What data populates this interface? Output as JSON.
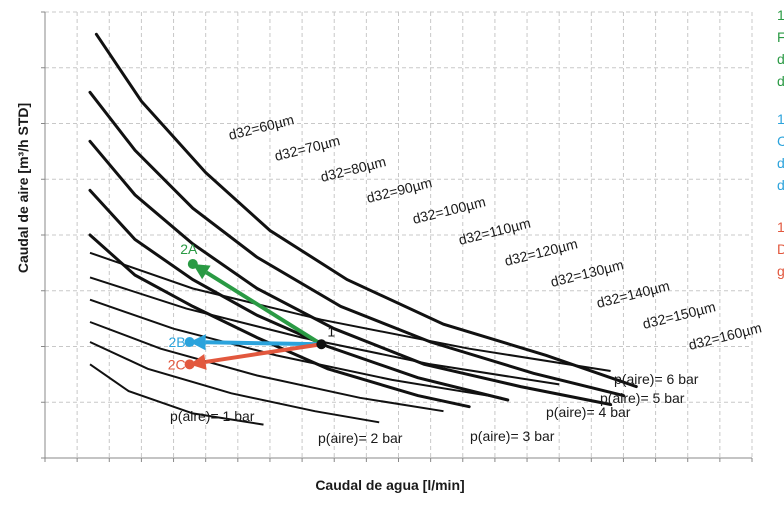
{
  "chart_data": {
    "type": "line",
    "xlabel": "Caudal de agua [l/min]",
    "ylabel": "Caudal de aire [m³/h STD]",
    "grid": true,
    "tick_labels": false,
    "diameter_curves": [
      {
        "label": "d32=60µm",
        "points": [
          [
            0.8,
            9.5
          ],
          [
            1.5,
            8.0
          ],
          [
            2.5,
            6.4
          ],
          [
            3.5,
            5.1
          ],
          [
            4.7,
            4.0
          ],
          [
            6.2,
            3.0
          ],
          [
            7.8,
            2.3
          ],
          [
            9.2,
            1.6
          ]
        ]
      },
      {
        "label": "d32=70µm",
        "points": [
          [
            0.7,
            8.2
          ],
          [
            1.4,
            6.9
          ],
          [
            2.3,
            5.6
          ],
          [
            3.3,
            4.5
          ],
          [
            4.6,
            3.4
          ],
          [
            6.0,
            2.6
          ],
          [
            7.6,
            1.9
          ],
          [
            9.0,
            1.4
          ]
        ]
      },
      {
        "label": "d32=80µm",
        "points": [
          [
            0.7,
            7.1
          ],
          [
            1.4,
            5.9
          ],
          [
            2.3,
            4.8
          ],
          [
            3.3,
            3.8
          ],
          [
            4.5,
            2.9
          ],
          [
            5.9,
            2.1
          ],
          [
            7.4,
            1.6
          ],
          [
            8.8,
            1.2
          ]
        ]
      },
      {
        "label": "d32=90µm",
        "points": [
          [
            0.7,
            6.0
          ],
          [
            1.4,
            4.9
          ],
          [
            2.3,
            4.0
          ],
          [
            3.3,
            3.2
          ],
          [
            4.4,
            2.5
          ],
          [
            5.8,
            1.8
          ],
          [
            7.2,
            1.3
          ]
        ]
      },
      {
        "label": "d32=100µm",
        "points": [
          [
            0.7,
            5.0
          ],
          [
            1.4,
            4.1
          ],
          [
            2.3,
            3.4
          ],
          [
            3.3,
            2.7
          ],
          [
            4.4,
            2.0
          ],
          [
            5.8,
            1.4
          ],
          [
            6.6,
            1.15
          ]
        ]
      },
      {
        "label": "d32=110µm",
        "points": []
      },
      {
        "label": "d32=120µm",
        "points": []
      },
      {
        "label": "d32=130µm",
        "points": []
      },
      {
        "label": "d32=140µm",
        "points": []
      },
      {
        "label": "d32=150µm",
        "points": []
      },
      {
        "label": "d32=160µm",
        "points": []
      }
    ],
    "pressure_curves": [
      {
        "label": "p(aire)= 1 bar",
        "points": [
          [
            0.7,
            2.1
          ],
          [
            1.3,
            1.5
          ],
          [
            2.3,
            1.0
          ],
          [
            3.4,
            0.75
          ]
        ]
      },
      {
        "label": "p(aire)= 2 bar",
        "points": [
          [
            0.7,
            2.6
          ],
          [
            1.6,
            2.0
          ],
          [
            2.9,
            1.45
          ],
          [
            4.2,
            1.05
          ],
          [
            5.2,
            0.8
          ]
        ]
      },
      {
        "label": "p(aire)= 3 bar",
        "points": [
          [
            0.7,
            3.05
          ],
          [
            1.8,
            2.45
          ],
          [
            3.3,
            1.85
          ],
          [
            4.9,
            1.35
          ],
          [
            6.2,
            1.05
          ]
        ]
      },
      {
        "label": "p(aire)= 4 bar",
        "points": [
          [
            0.7,
            3.55
          ],
          [
            2.0,
            2.9
          ],
          [
            3.6,
            2.3
          ],
          [
            5.4,
            1.75
          ],
          [
            7.1,
            1.35
          ]
        ]
      },
      {
        "label": "p(aire)= 5 bar",
        "points": [
          [
            0.7,
            4.05
          ],
          [
            2.2,
            3.35
          ],
          [
            4.0,
            2.7
          ],
          [
            6.0,
            2.1
          ],
          [
            8.0,
            1.65
          ]
        ]
      },
      {
        "label": "p(aire)= 6 bar",
        "points": [
          [
            0.7,
            4.6
          ],
          [
            2.3,
            3.8
          ],
          [
            4.3,
            3.1
          ],
          [
            6.6,
            2.45
          ],
          [
            8.8,
            1.95
          ]
        ]
      }
    ],
    "points": [
      {
        "label": "1",
        "x": 4.3,
        "y": 2.55,
        "color": "#111111"
      },
      {
        "label": "2A",
        "x": 2.3,
        "y": 4.35,
        "color": "#2a9a44"
      },
      {
        "label": "2B",
        "x": 2.25,
        "y": 2.6,
        "color": "#2ba3dc"
      },
      {
        "label": "2C",
        "x": 2.25,
        "y": 2.1,
        "color": "#e2583e"
      }
    ],
    "arrows": [
      {
        "from": "1",
        "to": "2A",
        "color": "#2a9a44"
      },
      {
        "from": "1",
        "to": "2B",
        "color": "#2ba3dc"
      },
      {
        "from": "1",
        "to": "2C",
        "color": "#e2583e"
      }
    ]
  },
  "notes": [
    {
      "lines": [
        "1",
        "F",
        "d",
        "d"
      ],
      "color": "#2a9a44"
    },
    {
      "lines": [
        "1",
        "C",
        "d",
        "d"
      ],
      "color": "#2ba3dc"
    },
    {
      "lines": [
        "1",
        "D",
        "g"
      ],
      "color": "#e2583e"
    }
  ]
}
